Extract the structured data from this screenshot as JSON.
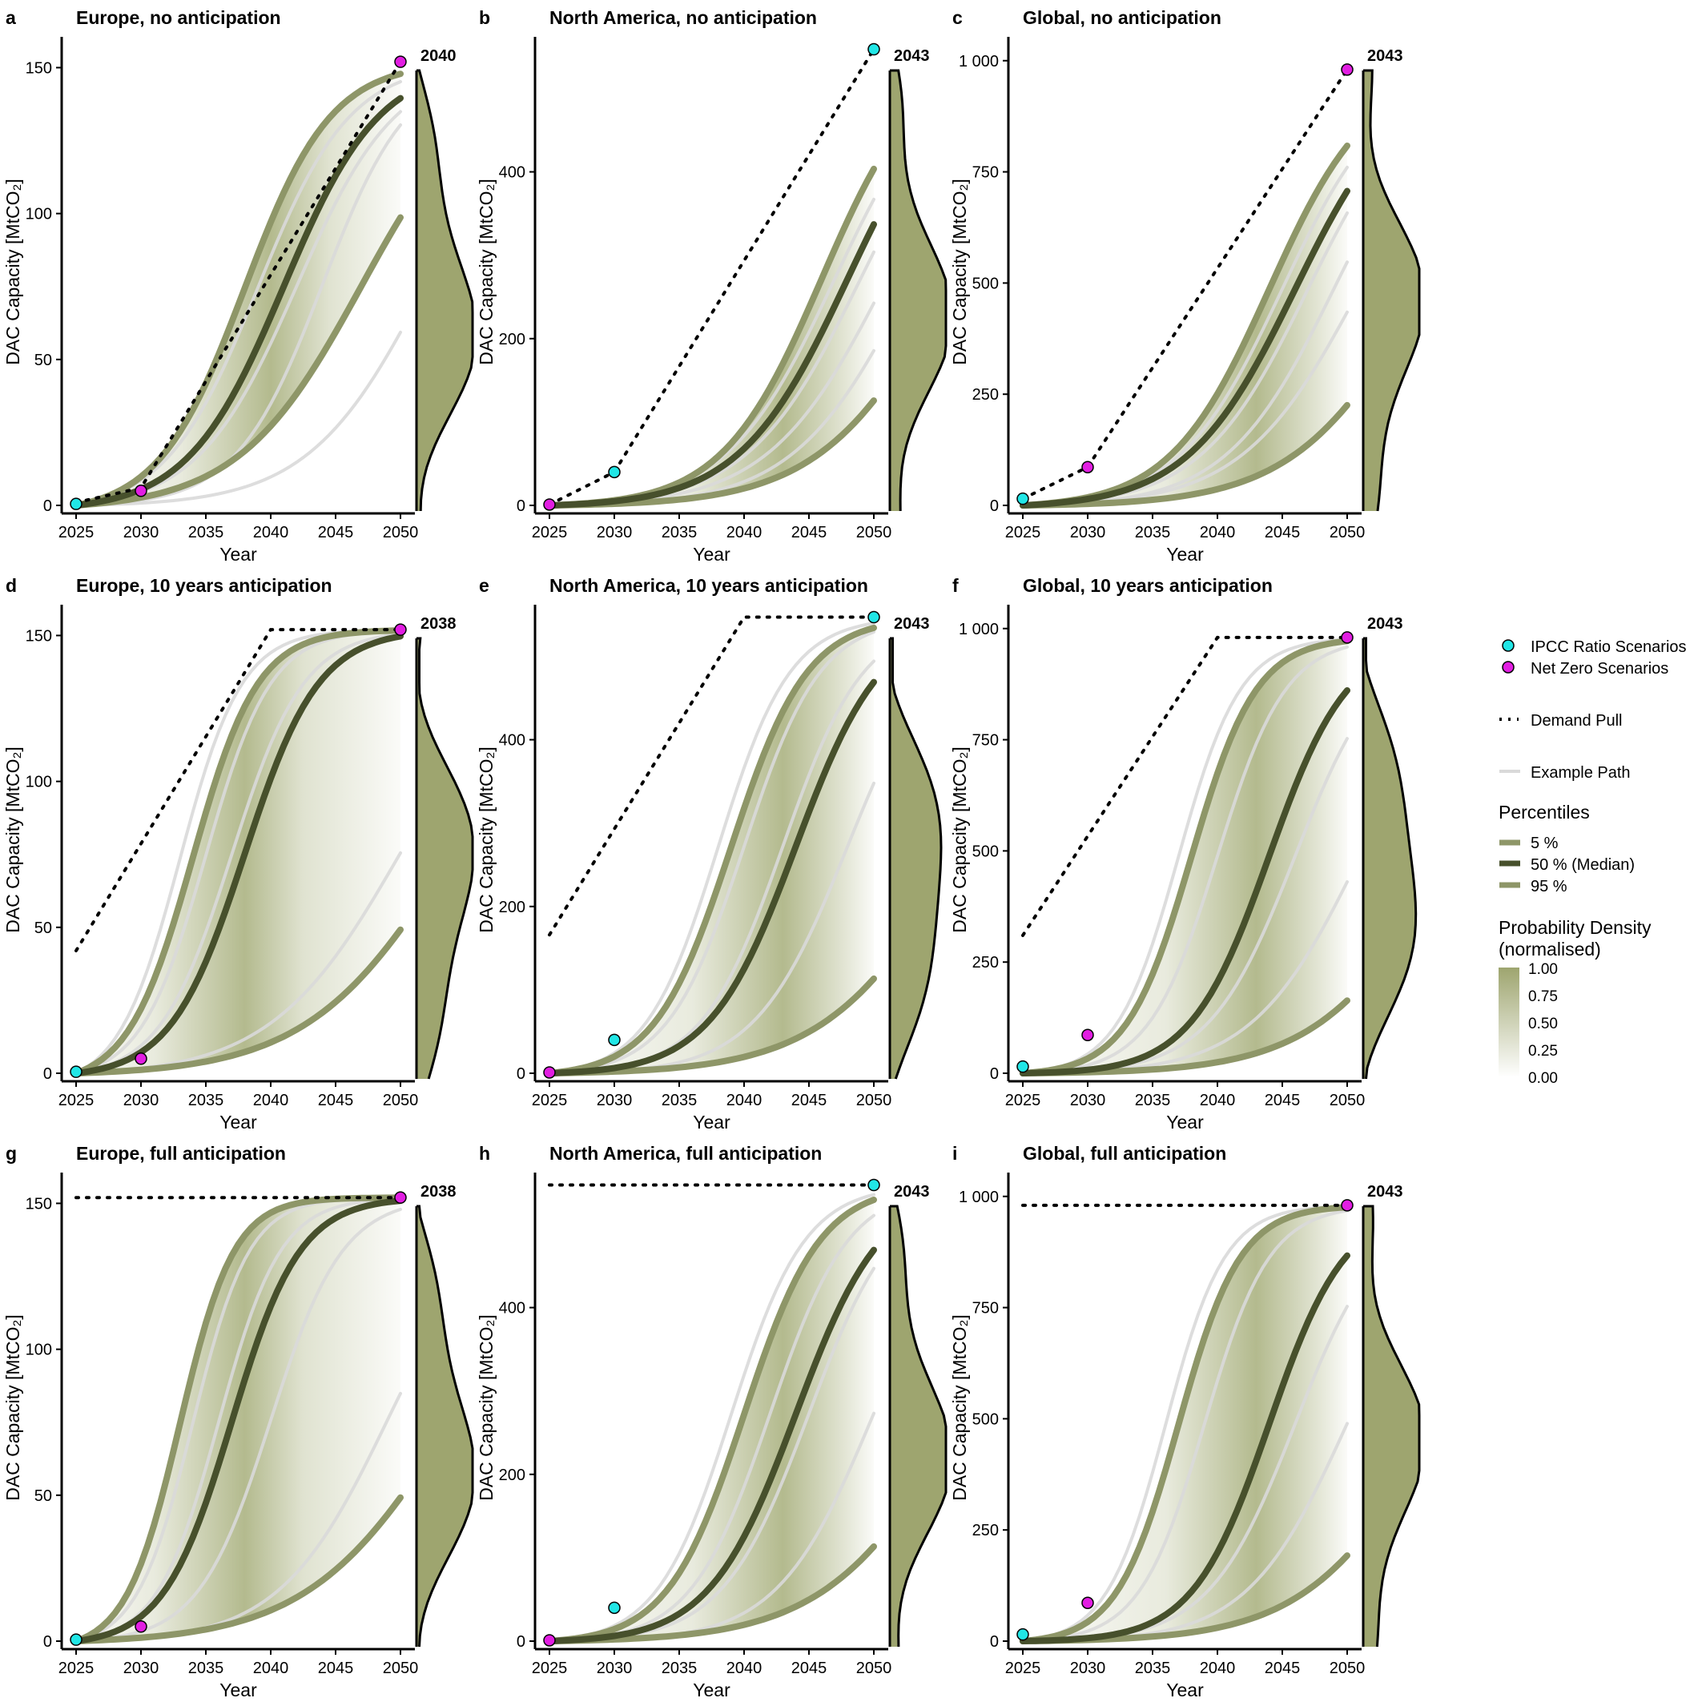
{
  "colors": {
    "band": "#a6ae7a",
    "pct_light": "#8e9668",
    "median": "#47502c",
    "example": "#d9d9d9",
    "density_fill": "#9ea56f",
    "ipcc": "#21e6e6",
    "netzero": "#e21ee2",
    "axis": "#000000"
  },
  "chart_data": [
    {
      "type": "line",
      "letter": "a",
      "title": "Europe, no anticipation",
      "xlabel": "Year",
      "ylabel": "DAC Capacity [MtCO₂]",
      "xlim": [
        2025,
        2050
      ],
      "ylim": [
        0,
        160
      ],
      "yticks": [
        0,
        50,
        100,
        150
      ],
      "ytick_labels": [
        "0",
        "50",
        "100",
        "150"
      ],
      "xticks": [
        2025,
        2030,
        2035,
        2040,
        2045,
        2050
      ],
      "target": 152,
      "median_year": 2040,
      "density_label": "2040",
      "demand_start": 1,
      "demand_mid": {
        "x": 2030,
        "y": 6
      },
      "cap_year": null,
      "p5": {
        "mid": 2047,
        "k": 0.21
      },
      "p50": {
        "mid": 2041,
        "k": 0.27
      },
      "p95": {
        "mid": 2038,
        "k": 0.3
      },
      "examples": [
        {
          "mid": 2039,
          "k": 0.28
        },
        {
          "mid": 2042,
          "k": 0.26
        },
        {
          "mid": 2044,
          "k": 0.3
        },
        {
          "mid": 2052,
          "k": 0.22
        }
      ],
      "density_peak": 2040,
      "ipcc_points": [
        {
          "x": 2025,
          "y": 0.5
        }
      ],
      "netzero_points": [
        {
          "x": 2030,
          "y": 5
        },
        {
          "x": 2050,
          "y": 152
        }
      ]
    },
    {
      "type": "line",
      "letter": "b",
      "title": "North America, no anticipation",
      "xlabel": "Year",
      "ylabel": "DAC Capacity [MtCO₂]",
      "xlim": [
        2025,
        2050
      ],
      "ylim": [
        0,
        560
      ],
      "yticks": [
        0,
        200,
        400
      ],
      "ytick_labels": [
        "0",
        "200",
        "400"
      ],
      "xticks": [
        2025,
        2030,
        2035,
        2040,
        2045,
        2050
      ],
      "target": 547,
      "median_year": 2043,
      "density_label": "2043",
      "demand_start": 1,
      "demand_mid": {
        "x": 2030,
        "y": 40
      },
      "cap_year": null,
      "p5": {
        "mid": 2056,
        "k": 0.2
      },
      "p50": {
        "mid": 2048,
        "k": 0.24
      },
      "p95": {
        "mid": 2046,
        "k": 0.26
      },
      "examples": [
        {
          "mid": 2047,
          "k": 0.24
        },
        {
          "mid": 2049,
          "k": 0.23
        },
        {
          "mid": 2051,
          "k": 0.22
        },
        {
          "mid": 2053,
          "k": 0.22
        }
      ],
      "density_peak": 2043,
      "ipcc_points": [
        {
          "x": 2030,
          "y": 40
        },
        {
          "x": 2050,
          "y": 547
        }
      ],
      "netzero_points": [
        {
          "x": 2025,
          "y": 1
        }
      ]
    },
    {
      "type": "line",
      "letter": "c",
      "title": "Global, no anticipation",
      "xlabel": "Year",
      "ylabel": "DAC Capacity [MtCO₂]",
      "xlim": [
        2025,
        2050
      ],
      "ylim": [
        0,
        1050
      ],
      "yticks": [
        0,
        250,
        500,
        750,
        1000
      ],
      "ytick_labels": [
        "0",
        "250",
        "500",
        "750",
        "1 000"
      ],
      "xticks": [
        2025,
        2030,
        2035,
        2040,
        2045,
        2050
      ],
      "target": 980,
      "median_year": 2043,
      "density_label": "2043",
      "demand_start": 15,
      "demand_mid": {
        "x": 2030,
        "y": 86
      },
      "cap_year": null,
      "p5": {
        "mid": 2056,
        "k": 0.2
      },
      "p50": {
        "mid": 2046,
        "k": 0.24
      },
      "p95": {
        "mid": 2044,
        "k": 0.26
      },
      "examples": [
        {
          "mid": 2045,
          "k": 0.25
        },
        {
          "mid": 2047,
          "k": 0.24
        },
        {
          "mid": 2049,
          "k": 0.24
        },
        {
          "mid": 2051,
          "k": 0.22
        }
      ],
      "density_peak": 2043,
      "ipcc_points": [
        {
          "x": 2025,
          "y": 15
        }
      ],
      "netzero_points": [
        {
          "x": 2030,
          "y": 86
        },
        {
          "x": 2050,
          "y": 980
        }
      ]
    },
    {
      "type": "line",
      "letter": "d",
      "title": "Europe, 10 years anticipation",
      "xlabel": "Year",
      "ylabel": "DAC Capacity [MtCO₂]",
      "xlim": [
        2025,
        2050
      ],
      "ylim": [
        0,
        160
      ],
      "yticks": [
        0,
        50,
        100,
        150
      ],
      "ytick_labels": [
        "0",
        "50",
        "100",
        "150"
      ],
      "xticks": [
        2025,
        2030,
        2035,
        2040,
        2045,
        2050
      ],
      "target": 152,
      "median_year": 2038,
      "density_label": "2038",
      "demand_start": 42,
      "demand_mid": null,
      "cap_year": 2040,
      "p5": {
        "mid": 2054,
        "k": 0.18
      },
      "p50": {
        "mid": 2038,
        "k": 0.35
      },
      "p95": {
        "mid": 2034,
        "k": 0.4
      },
      "examples": [
        {
          "mid": 2033,
          "k": 0.42
        },
        {
          "mid": 2035,
          "k": 0.4
        },
        {
          "mid": 2037,
          "k": 0.36
        },
        {
          "mid": 2050,
          "k": 0.2
        }
      ],
      "density_peak": 2038,
      "ipcc_points": [
        {
          "x": 2025,
          "y": 0.5
        }
      ],
      "netzero_points": [
        {
          "x": 2030,
          "y": 5
        },
        {
          "x": 2050,
          "y": 152
        }
      ]
    },
    {
      "type": "line",
      "letter": "e",
      "title": "North America, 10 years anticipation",
      "xlabel": "Year",
      "ylabel": "DAC Capacity [MtCO₂]",
      "xlim": [
        2025,
        2050
      ],
      "ylim": [
        0,
        560
      ],
      "yticks": [
        0,
        200,
        400
      ],
      "ytick_labels": [
        "0",
        "200",
        "400"
      ],
      "xticks": [
        2025,
        2030,
        2035,
        2040,
        2045,
        2050
      ],
      "target": 547,
      "median_year": 2043,
      "density_label": "2043",
      "demand_start": 166,
      "demand_mid": null,
      "cap_year": 2040,
      "p5": {
        "mid": 2057,
        "k": 0.19
      },
      "p50": {
        "mid": 2044,
        "k": 0.3
      },
      "p95": {
        "mid": 2039,
        "k": 0.34
      },
      "examples": [
        {
          "mid": 2038,
          "k": 0.36
        },
        {
          "mid": 2040,
          "k": 0.34
        },
        {
          "mid": 2043,
          "k": 0.32
        },
        {
          "mid": 2048,
          "k": 0.28
        }
      ],
      "density_peak": 2043,
      "ipcc_points": [
        {
          "x": 2030,
          "y": 40
        },
        {
          "x": 2050,
          "y": 547
        }
      ],
      "netzero_points": [
        {
          "x": 2025,
          "y": 1
        }
      ]
    },
    {
      "type": "line",
      "letter": "f",
      "title": "Global, 10 years anticipation",
      "xlabel": "Year",
      "ylabel": "DAC Capacity [MtCO₂]",
      "xlim": [
        2025,
        2050
      ],
      "ylim": [
        0,
        1050
      ],
      "yticks": [
        0,
        250,
        500,
        750,
        1000
      ],
      "ytick_labels": [
        "0",
        "250",
        "500",
        "750",
        "1 000"
      ],
      "xticks": [
        2025,
        2030,
        2035,
        2040,
        2045,
        2050
      ],
      "target": 980,
      "median_year": 2043,
      "density_label": "2043",
      "demand_start": 310,
      "demand_mid": null,
      "cap_year": 2040,
      "p5": {
        "mid": 2058,
        "k": 0.2
      },
      "p50": {
        "mid": 2044,
        "k": 0.33
      },
      "p95": {
        "mid": 2038,
        "k": 0.4
      },
      "examples": [
        {
          "mid": 2037,
          "k": 0.42
        },
        {
          "mid": 2040,
          "k": 0.38
        },
        {
          "mid": 2046,
          "k": 0.3
        },
        {
          "mid": 2051,
          "k": 0.24
        }
      ],
      "density_peak": 2043,
      "ipcc_points": [
        {
          "x": 2025,
          "y": 15
        }
      ],
      "netzero_points": [
        {
          "x": 2030,
          "y": 86
        },
        {
          "x": 2050,
          "y": 980
        }
      ]
    },
    {
      "type": "line",
      "letter": "g",
      "title": "Europe, full anticipation",
      "xlabel": "Year",
      "ylabel": "DAC Capacity [MtCO₂]",
      "xlim": [
        2025,
        2050
      ],
      "ylim": [
        0,
        160
      ],
      "yticks": [
        0,
        50,
        100,
        150
      ],
      "ytick_labels": [
        "0",
        "50",
        "100",
        "150"
      ],
      "xticks": [
        2025,
        2030,
        2035,
        2040,
        2045,
        2050
      ],
      "target": 152,
      "median_year": 2038,
      "density_label": "2038",
      "demand_start": 152,
      "demand_mid": null,
      "cap_year": 2025,
      "p5": {
        "mid": 2054,
        "k": 0.18
      },
      "p50": {
        "mid": 2037,
        "k": 0.38
      },
      "p95": {
        "mid": 2033,
        "k": 0.48
      },
      "examples": [
        {
          "mid": 2034,
          "k": 0.46
        },
        {
          "mid": 2036,
          "k": 0.42
        },
        {
          "mid": 2040,
          "k": 0.36
        },
        {
          "mid": 2049,
          "k": 0.24
        }
      ],
      "density_peak": 2038,
      "ipcc_points": [
        {
          "x": 2025,
          "y": 0.5
        }
      ],
      "netzero_points": [
        {
          "x": 2030,
          "y": 5
        },
        {
          "x": 2050,
          "y": 152
        }
      ]
    },
    {
      "type": "line",
      "letter": "h",
      "title": "North America, full anticipation",
      "xlabel": "Year",
      "ylabel": "DAC Capacity [MtCO₂]",
      "xlim": [
        2025,
        2050
      ],
      "ylim": [
        0,
        560
      ],
      "yticks": [
        0,
        200,
        400
      ],
      "ytick_labels": [
        "0",
        "200",
        "400"
      ],
      "xticks": [
        2025,
        2030,
        2035,
        2040,
        2045,
        2050
      ],
      "target": 547,
      "median_year": 2043,
      "density_label": "2043",
      "demand_start": 547,
      "demand_mid": null,
      "cap_year": 2025,
      "p5": {
        "mid": 2057,
        "k": 0.19
      },
      "p50": {
        "mid": 2044,
        "k": 0.3
      },
      "p95": {
        "mid": 2040,
        "k": 0.34
      },
      "examples": [
        {
          "mid": 2039,
          "k": 0.35
        },
        {
          "mid": 2042,
          "k": 0.33
        },
        {
          "mid": 2045,
          "k": 0.3
        },
        {
          "mid": 2050,
          "k": 0.27
        }
      ],
      "density_peak": 2043,
      "ipcc_points": [
        {
          "x": 2030,
          "y": 40
        },
        {
          "x": 2050,
          "y": 547
        }
      ],
      "netzero_points": [
        {
          "x": 2025,
          "y": 1
        }
      ]
    },
    {
      "type": "line",
      "letter": "i",
      "title": "Global, full anticipation",
      "xlabel": "Year",
      "ylabel": "DAC Capacity [MtCO₂]",
      "xlim": [
        2025,
        2050
      ],
      "ylim": [
        0,
        1050
      ],
      "yticks": [
        0,
        250,
        500,
        750,
        1000
      ],
      "ytick_labels": [
        "0",
        "250",
        "500",
        "750",
        "1 000"
      ],
      "xticks": [
        2025,
        2030,
        2035,
        2040,
        2045,
        2050
      ],
      "target": 980,
      "median_year": 2043,
      "density_label": "2043",
      "demand_start": 980,
      "demand_mid": null,
      "cap_year": 2025,
      "p5": {
        "mid": 2057,
        "k": 0.2
      },
      "p50": {
        "mid": 2044,
        "k": 0.34
      },
      "p95": {
        "mid": 2037,
        "k": 0.42
      },
      "examples": [
        {
          "mid": 2036,
          "k": 0.44
        },
        {
          "mid": 2039,
          "k": 0.4
        },
        {
          "mid": 2046,
          "k": 0.3
        },
        {
          "mid": 2050,
          "k": 0.26
        }
      ],
      "density_peak": 2043,
      "ipcc_points": [
        {
          "x": 2025,
          "y": 15
        }
      ],
      "netzero_points": [
        {
          "x": 2030,
          "y": 86
        },
        {
          "x": 2050,
          "y": 980
        }
      ]
    }
  ],
  "legend": {
    "ipcc_label": "IPCC Ratio Scenarios",
    "netzero_label": "Net Zero Scenarios",
    "demand_label": "Demand Pull",
    "example_label": "Example Path",
    "percentiles_title": "Percentiles",
    "p5_label": "5 %",
    "p50_label": "50 % (Median)",
    "p95_label": "95 %",
    "density_title_1": "Probability Density",
    "density_title_2": "(normalised)",
    "density_ticks": [
      "1.00",
      "0.75",
      "0.50",
      "0.25",
      "0.00"
    ]
  }
}
